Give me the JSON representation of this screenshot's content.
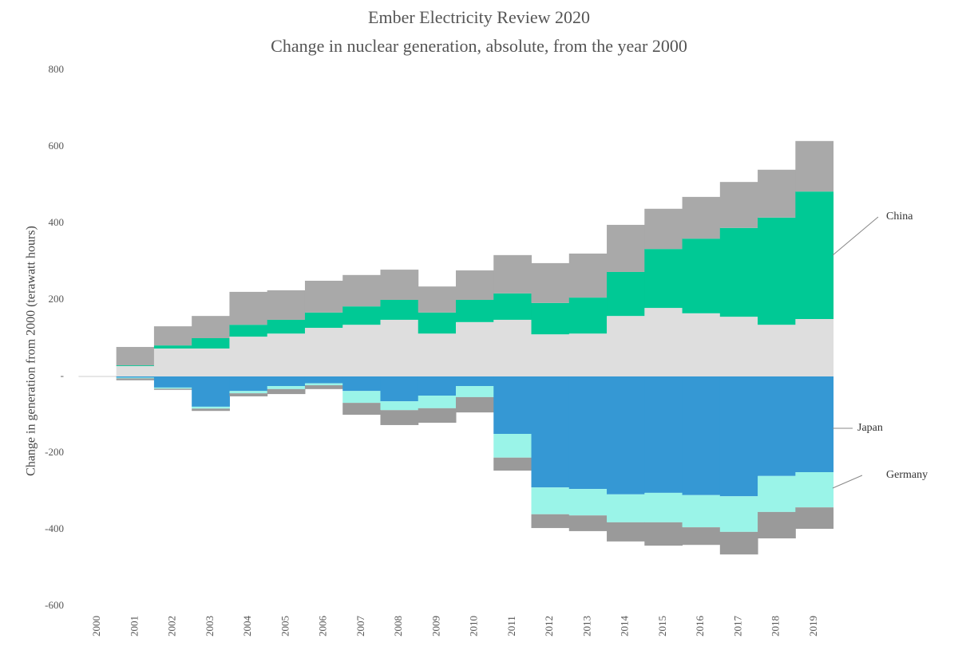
{
  "chart_data": {
    "type": "stacked-step",
    "title": "Ember Electricity Review 2020",
    "subtitle": "Change in nuclear generation, absolute, from the year 2000",
    "y_label": "Change in generation from 2000 (terawatt hours)",
    "categories": [
      "2000",
      "2001",
      "2002",
      "2003",
      "2004",
      "2005",
      "2006",
      "2007",
      "2008",
      "2009",
      "2010",
      "2011",
      "2012",
      "2013",
      "2014",
      "2015",
      "2016",
      "2017",
      "2018",
      "2019"
    ],
    "ylim": [
      -600,
      800
    ],
    "yticks": [
      800,
      600,
      400,
      200,
      {
        "value": 0,
        "label": "-"
      },
      -200,
      -400,
      -600
    ],
    "series": [
      {
        "color": "#dedede",
        "values": [
          0,
          27,
          73,
          73,
          104,
          112,
          127,
          135,
          148,
          112,
          142,
          148,
          110,
          112,
          158,
          179,
          165,
          156,
          135,
          150
        ]
      },
      {
        "name": "China",
        "color": "#00c995",
        "values": [
          0,
          2,
          8,
          27,
          31,
          36,
          40,
          48,
          52,
          55,
          58,
          69,
          82,
          94,
          115,
          154,
          195,
          232,
          280,
          333
        ]
      },
      {
        "color": "#a9a9a9",
        "values": [
          0,
          48,
          50,
          58,
          86,
          77,
          83,
          82,
          79,
          68,
          77,
          100,
          104,
          115,
          123,
          105,
          109,
          120,
          125,
          132
        ]
      },
      {
        "name": "Japan",
        "color": "#3598d4",
        "values": [
          0,
          -3,
          -29,
          -79,
          -38,
          -25,
          -18,
          -38,
          -65,
          -50,
          -25,
          -150,
          -290,
          -294,
          -308,
          -304,
          -310,
          -313,
          -260,
          -250
        ]
      },
      {
        "name": "Germany",
        "color": "#9af4e8",
        "values": [
          0,
          -2,
          -3,
          -5,
          -6,
          -8,
          -5,
          -31,
          -23,
          -33,
          -29,
          -62,
          -70,
          -69,
          -73,
          -77,
          -84,
          -93,
          -94,
          -92
        ]
      },
      {
        "color": "#9a9a9a",
        "values": [
          0,
          -5,
          -3,
          -6,
          -8,
          -13,
          -10,
          -31,
          -39,
          -38,
          -40,
          -34,
          -36,
          -41,
          -50,
          -61,
          -46,
          -59,
          -69,
          -56
        ]
      }
    ]
  }
}
